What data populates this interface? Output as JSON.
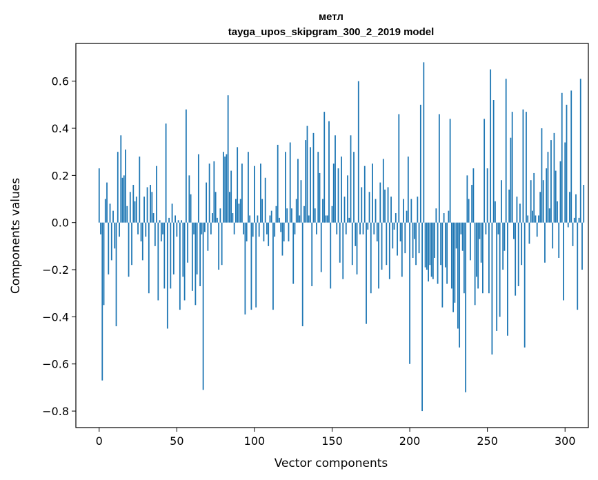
{
  "chart_data": {
    "type": "bar",
    "title_line1": "метл",
    "title_line2": "tayga_upos_skipgram_300_2_2019 model",
    "xlabel": "Vector components",
    "ylabel": "Components values",
    "xlim": [
      -15,
      315
    ],
    "ylim": [
      -0.87,
      0.76
    ],
    "xticks": [
      0,
      50,
      100,
      150,
      200,
      250,
      300
    ],
    "xtick_labels": [
      "0",
      "50",
      "100",
      "150",
      "200",
      "250",
      "300"
    ],
    "yticks": [
      -0.8,
      -0.6,
      -0.4,
      -0.2,
      0.0,
      0.2,
      0.4,
      0.6
    ],
    "ytick_labels": [
      "−0.8",
      "−0.6",
      "−0.4",
      "−0.2",
      "0.0",
      "0.2",
      "0.4",
      "0.6"
    ],
    "bar_color": "#1f77b4",
    "x_start": 0,
    "values": [
      0.23,
      -0.05,
      -0.67,
      -0.35,
      0.1,
      0.17,
      -0.22,
      0.08,
      -0.16,
      0.05,
      -0.11,
      -0.44,
      0.3,
      -0.06,
      0.37,
      0.19,
      0.2,
      0.31,
      0.07,
      -0.23,
      0.13,
      -0.18,
      0.16,
      0.09,
      0.11,
      -0.05,
      0.28,
      -0.08,
      -0.16,
      0.11,
      -0.06,
      0.15,
      -0.3,
      0.16,
      0.13,
      0.04,
      -0.1,
      0.24,
      -0.33,
      0.01,
      -0.08,
      -0.05,
      -0.28,
      0.42,
      -0.45,
      0.02,
      -0.28,
      0.08,
      -0.22,
      0.03,
      -0.06,
      0.01,
      -0.37,
      0.01,
      -0.23,
      -0.33,
      0.48,
      -0.17,
      0.2,
      0.12,
      -0.29,
      -0.05,
      -0.35,
      -0.22,
      0.29,
      -0.27,
      -0.05,
      -0.71,
      -0.04,
      0.17,
      -0.12,
      0.25,
      -0.05,
      0.04,
      0.26,
      0.13,
      0.02,
      -0.2,
      0.06,
      -0.18,
      0.3,
      0.28,
      0.29,
      0.54,
      0.13,
      0.22,
      0.04,
      -0.05,
      0.1,
      0.32,
      0.08,
      0.1,
      0.25,
      -0.05,
      -0.39,
      -0.08,
      0.3,
      0.03,
      -0.37,
      -0.06,
      0.24,
      -0.36,
      0.03,
      -0.06,
      0.25,
      0.1,
      -0.08,
      0.19,
      -0.05,
      -0.1,
      0.03,
      0.05,
      -0.37,
      -0.06,
      0.07,
      0.33,
      0.02,
      -0.04,
      -0.14,
      -0.08,
      0.3,
      0.06,
      -0.08,
      0.34,
      0.06,
      -0.26,
      -0.05,
      0.1,
      0.27,
      0.03,
      0.18,
      -0.44,
      0.07,
      0.35,
      0.41,
      0.03,
      0.32,
      -0.27,
      0.38,
      0.06,
      -0.05,
      0.3,
      0.21,
      -0.21,
      0.1,
      0.47,
      0.03,
      0.03,
      0.43,
      -0.28,
      0.07,
      0.25,
      0.37,
      -0.05,
      0.23,
      -0.17,
      0.28,
      -0.24,
      0.11,
      -0.05,
      0.2,
      0.02,
      0.37,
      -0.18,
      0.3,
      -0.1,
      -0.22,
      0.6,
      -0.05,
      0.15,
      -0.05,
      0.24,
      -0.43,
      -0.03,
      0.13,
      -0.3,
      0.25,
      -0.05,
      0.1,
      -0.08,
      -0.28,
      0.17,
      -0.2,
      0.27,
      0.14,
      -0.18,
      0.15,
      -0.24,
      0.11,
      -0.11,
      -0.03,
      0.04,
      -0.14,
      0.46,
      -0.08,
      -0.23,
      0.1,
      -0.13,
      0.05,
      0.28,
      -0.6,
      0.1,
      -0.15,
      -0.07,
      -0.18,
      0.11,
      -0.13,
      0.5,
      -0.8,
      0.68,
      -0.19,
      -0.2,
      -0.25,
      -0.18,
      -0.23,
      -0.24,
      -0.15,
      0.06,
      -0.26,
      0.46,
      -0.18,
      -0.36,
      0.04,
      -0.19,
      -0.26,
      0.05,
      0.44,
      -0.28,
      -0.38,
      -0.34,
      -0.11,
      -0.45,
      -0.53,
      -0.05,
      -0.12,
      -0.3,
      -0.72,
      0.2,
      0.1,
      -0.16,
      0.16,
      0.23,
      -0.35,
      -0.23,
      -0.28,
      -0.07,
      -0.17,
      -0.3,
      0.44,
      -0.05,
      0.23,
      -0.3,
      0.65,
      -0.56,
      0.52,
      0.09,
      -0.46,
      -0.05,
      -0.4,
      0.18,
      -0.2,
      -0.12,
      0.61,
      -0.48,
      0.14,
      0.36,
      0.47,
      -0.07,
      -0.31,
      0.11,
      -0.27,
      0.08,
      -0.18,
      0.48,
      -0.53,
      0.47,
      0.03,
      -0.09,
      0.18,
      0.05,
      0.21,
      0.03,
      -0.06,
      0.03,
      0.13,
      0.4,
      0.18,
      -0.17,
      0.23,
      0.3,
      0.06,
      0.35,
      -0.11,
      0.38,
      0.22,
      0.09,
      -0.15,
      0.26,
      0.55,
      -0.33,
      0.34,
      0.5,
      -0.02,
      0.13,
      0.56,
      -0.1,
      0.02,
      0.12,
      -0.37,
      0.02,
      0.61,
      -0.2,
      0.16
    ]
  }
}
